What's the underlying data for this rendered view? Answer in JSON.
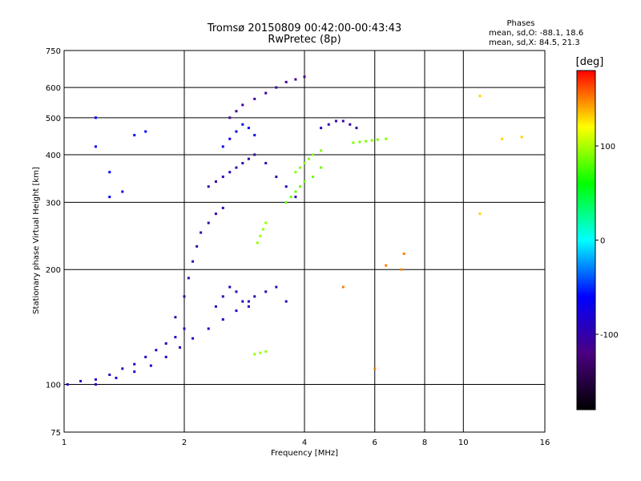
{
  "chart_data": {
    "type": "scatter",
    "title": "Tromsø 20150809 00:42:00-00:43:43",
    "subtitle": "RwPretec (8p)",
    "xlabel": "Frequency [MHz]",
    "ylabel": "Stationary phase Virtual Height [km]",
    "x_scale": "log",
    "y_scale": "log",
    "xlim": [
      1,
      16
    ],
    "ylim": [
      75,
      750
    ],
    "x_ticks": [
      1,
      2,
      4,
      6,
      8,
      10,
      16
    ],
    "x_tick_labels": [
      "1",
      "2",
      "4",
      "6",
      "8",
      "10",
      "16"
    ],
    "y_ticks": [
      75,
      100,
      200,
      300,
      400,
      500,
      600,
      750
    ],
    "y_tick_labels": [
      "75",
      "100",
      "200",
      "300",
      "400",
      "500",
      "600",
      "750"
    ],
    "grid": true,
    "stats": {
      "heading": "Phases",
      "line_o": "mean, sd,O: -88.1, 18.6",
      "line_x": "mean, sd,X:  84.5, 21.3"
    },
    "colorbar": {
      "label": "[deg]",
      "min": -180,
      "max": 180,
      "ticks": [
        100,
        0,
        -100
      ],
      "tick_labels": [
        "100",
        "0",
        "-100"
      ],
      "colors": [
        "#000000",
        "#4b0082",
        "#0000ff",
        "#00ffff",
        "#00ff00",
        "#ffff00",
        "#ff0000"
      ]
    },
    "series": [
      {
        "x": [
          1.02,
          1.1,
          1.2,
          1.3,
          1.4,
          1.5,
          1.6,
          1.7,
          1.8,
          1.9,
          2.0
        ],
        "y": [
          100,
          102,
          103,
          106,
          110,
          113,
          118,
          123,
          128,
          133,
          140
        ],
        "phase": -90
      },
      {
        "x": [
          1.2,
          1.35,
          1.5,
          1.65,
          1.8,
          1.95,
          2.1,
          2.3,
          2.5,
          2.7,
          2.9
        ],
        "y": [
          100,
          104,
          108,
          112,
          118,
          125,
          132,
          140,
          148,
          156,
          165
        ],
        "phase": -85
      },
      {
        "x": [
          1.9,
          2.0,
          2.05,
          2.1,
          2.15,
          2.2,
          2.3,
          2.4,
          2.5
        ],
        "y": [
          150,
          170,
          190,
          210,
          230,
          250,
          265,
          280,
          290
        ],
        "phase": -100
      },
      {
        "x": [
          2.4,
          2.5,
          2.6,
          2.7,
          2.8,
          2.9,
          3.0,
          3.2,
          3.4,
          3.6
        ],
        "y": [
          160,
          170,
          180,
          175,
          165,
          160,
          170,
          175,
          180,
          165
        ],
        "phase": -95
      },
      {
        "x": [
          2.3,
          2.4,
          2.5,
          2.6,
          2.7,
          2.8,
          2.9,
          3.0,
          3.2,
          3.4,
          3.6,
          3.8
        ],
        "y": [
          330,
          340,
          350,
          360,
          370,
          380,
          390,
          400,
          380,
          350,
          330,
          310
        ],
        "phase": -100
      },
      {
        "x": [
          2.5,
          2.6,
          2.7,
          2.8,
          2.9,
          3.0
        ],
        "y": [
          420,
          440,
          460,
          480,
          470,
          450
        ],
        "phase": -70
      },
      {
        "x": [
          2.6,
          2.7,
          2.8,
          3.0,
          3.2,
          3.4,
          3.6,
          3.8,
          4.0
        ],
        "y": [
          500,
          520,
          540,
          560,
          580,
          600,
          620,
          630,
          640
        ],
        "phase": -110
      },
      {
        "x": [
          3.6,
          3.7,
          3.8,
          3.9,
          4.0,
          4.2,
          4.4
        ],
        "y": [
          300,
          310,
          320,
          330,
          340,
          350,
          370
        ],
        "phase": 85
      },
      {
        "x": [
          3.8,
          3.9,
          4.0,
          4.1,
          4.2,
          4.4
        ],
        "y": [
          360,
          370,
          380,
          390,
          400,
          410
        ],
        "phase": 90
      },
      {
        "x": [
          3.05,
          3.1,
          3.15,
          3.2
        ],
        "y": [
          235,
          245,
          255,
          265
        ],
        "phase": 95
      },
      {
        "x": [
          3.0,
          3.1,
          3.2
        ],
        "y": [
          120,
          121,
          122
        ],
        "phase": 95
      },
      {
        "x": [
          4.4,
          4.6,
          4.8,
          5.0,
          5.2,
          5.4
        ],
        "y": [
          470,
          480,
          490,
          490,
          480,
          470
        ],
        "phase": -100
      },
      {
        "x": [
          5.3,
          5.5,
          5.7,
          5.9,
          6.1,
          6.4
        ],
        "y": [
          430,
          432,
          434,
          436,
          438,
          440
        ],
        "phase": 90
      },
      {
        "x": [
          1.2,
          1.2,
          1.3,
          1.3,
          1.4,
          1.5,
          1.6
        ],
        "y": [
          420,
          500,
          360,
          310,
          320,
          450,
          460
        ],
        "phase": -60
      },
      {
        "x": [
          5.0,
          6.0,
          6.4,
          7.0,
          7.1
        ],
        "y": [
          180,
          110,
          205,
          200,
          220
        ],
        "phase": 150
      },
      {
        "x": [
          11.0,
          11.0,
          12.5,
          14.0
        ],
        "y": [
          280,
          570,
          440,
          445
        ],
        "phase": 130
      }
    ]
  }
}
